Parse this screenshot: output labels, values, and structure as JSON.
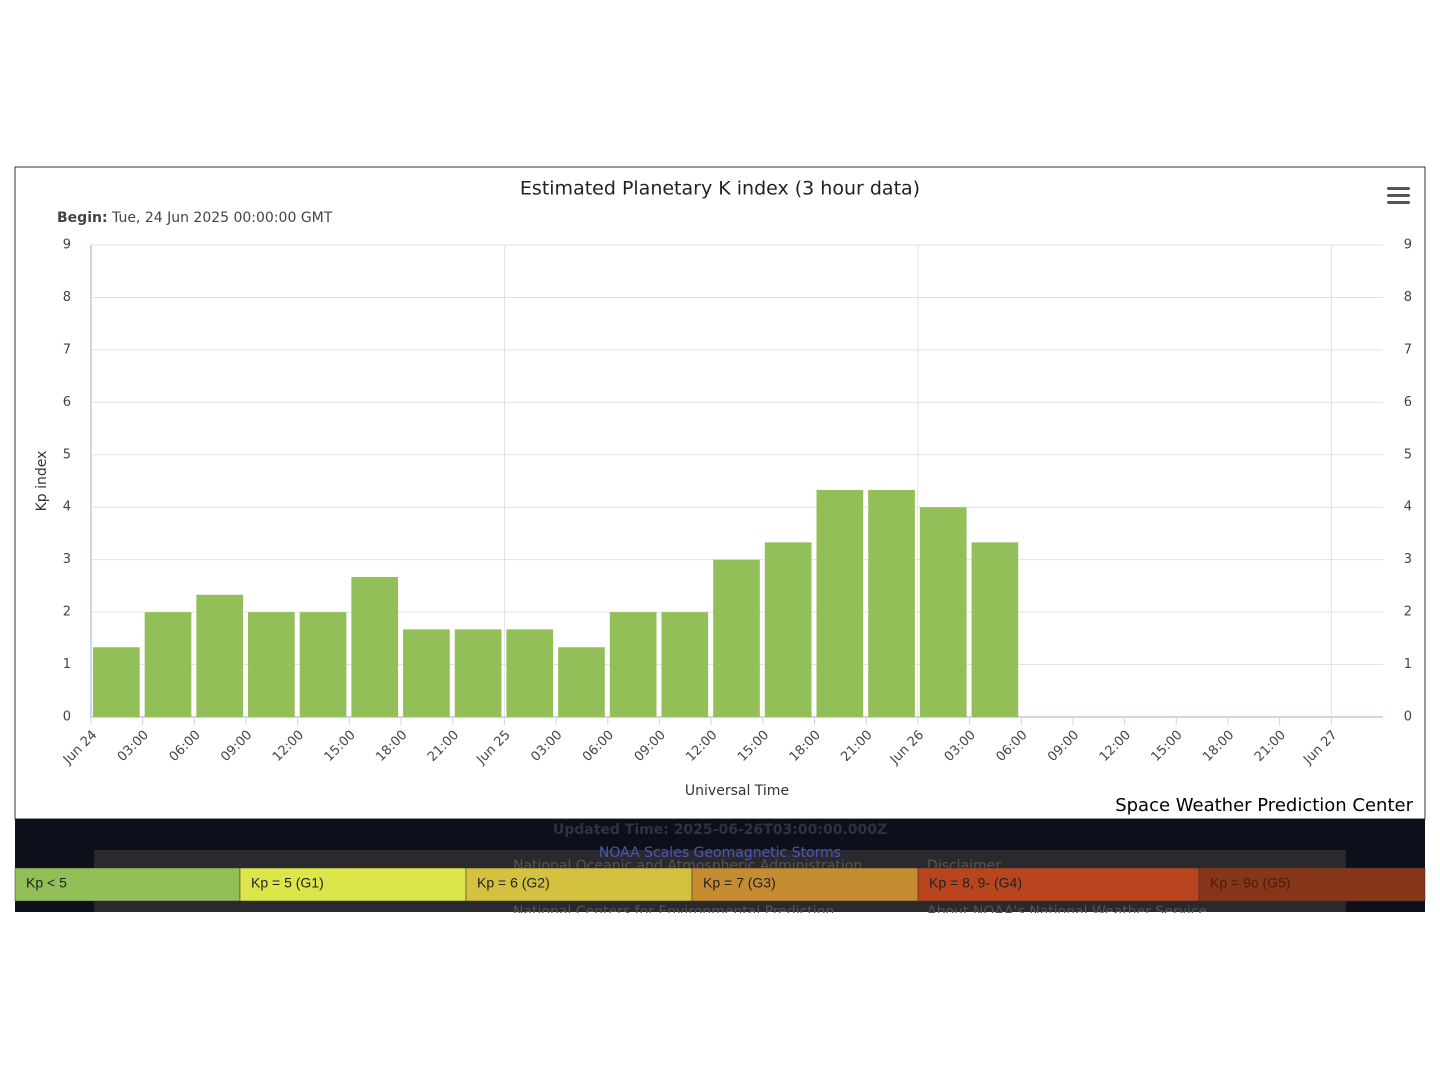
{
  "chart_data": {
    "type": "bar",
    "title": "Estimated Planetary K index (3 hour data)",
    "subtitle_label": "Begin:",
    "subtitle": "Tue, 24 Jun 2025 00:00:00 GMT",
    "x_label": "Universal Time",
    "y_label": "Kp index",
    "credits": "Space Weather Prediction Center",
    "categories": [
      "Jun 24",
      "03:00",
      "06:00",
      "09:00",
      "12:00",
      "15:00",
      "18:00",
      "21:00",
      "Jun 25",
      "03:00",
      "06:00",
      "09:00",
      "12:00",
      "15:00",
      "18:00",
      "21:00",
      "Jun 26",
      "03:00",
      "06:00",
      "09:00",
      "12:00",
      "15:00",
      "18:00",
      "21:00",
      "Jun 27"
    ],
    "values": [
      1.33,
      2,
      2.33,
      2,
      2,
      2.67,
      1.67,
      1.67,
      1.67,
      1.33,
      2,
      2,
      3,
      3.33,
      4.33,
      4.33,
      4,
      3.33,
      null,
      null,
      null,
      null,
      null,
      null,
      null
    ],
    "color": "#93bf58",
    "ylim": [
      0,
      9
    ],
    "yticks": [
      0,
      1,
      2,
      3,
      4,
      5,
      6,
      7,
      8,
      9
    ],
    "grid": true
  },
  "legend_scale": [
    {
      "label": "Kp < 5",
      "color": "#93bf58"
    },
    {
      "label": "Kp = 5 (G1)",
      "color": "#dce64a"
    },
    {
      "label": "Kp = 6 (G2)",
      "color": "#d4c13f"
    },
    {
      "label": "Kp = 7 (G3)",
      "color": "#c58d32"
    },
    {
      "label": "Kp = 8, 9- (G4)",
      "color": "#b8451e"
    },
    {
      "label": "Kp = 9o (G5)",
      "color": "#87361a"
    }
  ],
  "footer": {
    "updated": "Updated Time: 2025-06-26T03:00:00.000Z",
    "scales_link": "NOAA Scales Geomagnetic Storms",
    "links": [
      "National Oceanic and Atmospheric Administration",
      "Disclaimer",
      "National Centers for Environmental Prediction",
      "About NOAA's National Weather Service"
    ]
  }
}
